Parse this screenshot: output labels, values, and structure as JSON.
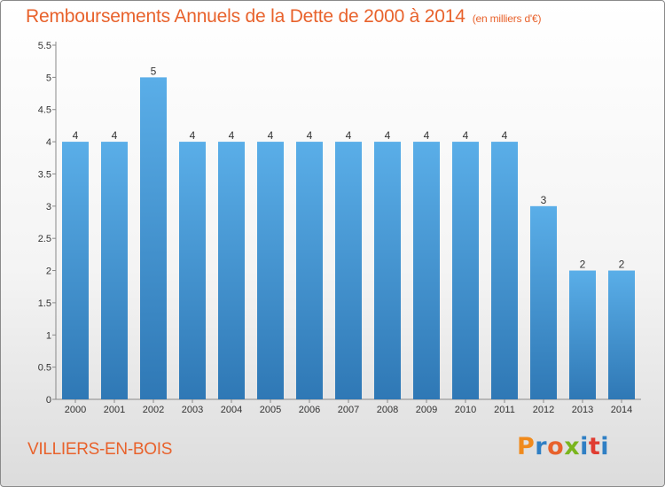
{
  "header": {
    "title": "Remboursements Annuels de la Dette de 2000 à 2014",
    "unit": "(en milliers d'€)"
  },
  "footer": {
    "commune": "VILLIERS-EN-BOIS",
    "logo_text": "Proxiti",
    "logo_colors": [
      "#f08a1c",
      "#2f7fc4",
      "#e8622c",
      "#7ab51d",
      "#2f7fc4",
      "#e03c31",
      "#2f7fc4"
    ]
  },
  "colors": {
    "bar_top": "#5aaee8",
    "bar_bottom": "#2f78b5",
    "text": "#e8622c"
  },
  "chart_data": {
    "type": "bar",
    "categories": [
      "2000",
      "2001",
      "2002",
      "2003",
      "2004",
      "2005",
      "2006",
      "2007",
      "2008",
      "2009",
      "2010",
      "2011",
      "2012",
      "2013",
      "2014"
    ],
    "values": [
      4,
      4,
      5,
      4,
      4,
      4,
      4,
      4,
      4,
      4,
      4,
      4,
      3,
      2,
      2
    ],
    "data_labels": [
      "4",
      "4",
      "5",
      "4",
      "4",
      "4",
      "4",
      "4",
      "4",
      "4",
      "4",
      "4",
      "3",
      "2",
      "2"
    ],
    "yticks": [
      0,
      0.5,
      1,
      1.5,
      2,
      2.5,
      3,
      3.5,
      4,
      4.5,
      5,
      5.5
    ],
    "ytick_labels": [
      "0",
      "0.5",
      "1",
      "1.5",
      "2",
      "2.5",
      "3",
      "3.5",
      "4",
      "4.5",
      "5",
      "5.5"
    ],
    "ylim": [
      0,
      5.5
    ],
    "grid": false,
    "legend": "none"
  }
}
